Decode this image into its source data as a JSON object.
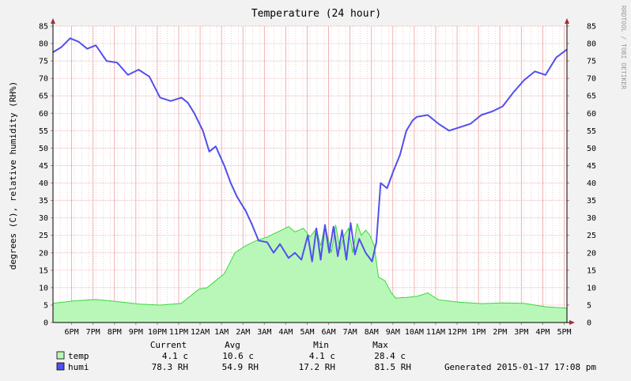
{
  "chart_data": {
    "type": "area+line",
    "title": "Temperature (24 hour)",
    "ylabel": "degrees (C), relative humidity (RH%)",
    "watermark": "RRDTOOL / TOBI OETIKER",
    "ylim": [
      0,
      85
    ],
    "y_ticks": [
      0,
      5,
      10,
      15,
      20,
      25,
      30,
      35,
      40,
      45,
      50,
      55,
      60,
      65,
      70,
      75,
      80,
      85
    ],
    "x_tick_labels": [
      "6PM",
      "7PM",
      "8PM",
      "9PM",
      "10PM",
      "11PM",
      "12AM",
      "1AM",
      "2AM",
      "3AM",
      "4AM",
      "5AM",
      "6AM",
      "7AM",
      "8AM",
      "9AM",
      "10AM",
      "11AM",
      "12PM",
      "1PM",
      "2PM",
      "3PM",
      "4PM",
      "5PM"
    ],
    "x_unit": "hours since 17:08 (left edge) to 17:08 (right edge)",
    "x_range": [
      0,
      24
    ],
    "grid": true,
    "colors": {
      "temp_fill": "#b9f7b9",
      "temp_line": "#39d839",
      "humi_line": "#5050ee",
      "grid": "#e8a0a0",
      "axis_arrow": "#a03030"
    },
    "series": [
      {
        "name": "temp",
        "style": "area",
        "x": [
          0,
          1,
          2,
          3,
          4,
          5,
          6,
          6.8,
          7.2,
          7.6,
          8,
          8.5,
          9,
          9.5,
          10,
          10.5,
          11,
          11.3,
          11.7,
          12,
          12.3,
          12.5,
          12.7,
          13,
          13.2,
          13.4,
          13.6,
          13.8,
          14,
          14.2,
          14.4,
          14.6,
          14.8,
          15.0,
          15.2,
          15.5,
          15.8,
          16,
          16.5,
          17,
          17.5,
          18,
          19,
          20,
          21,
          22,
          23,
          24
        ],
        "values": [
          5.5,
          6.2,
          6.6,
          6.0,
          5.3,
          5.0,
          5.5,
          9.5,
          10.0,
          12.0,
          14.0,
          20.0,
          22.0,
          23.5,
          24.5,
          26.0,
          27.5,
          26.0,
          27.0,
          24.5,
          27.0,
          22.0,
          28.0,
          20.0,
          28.0,
          21.0,
          25.0,
          27.0,
          20.0,
          28.4,
          25.0,
          26.5,
          25.0,
          22.0,
          13.0,
          12.0,
          8.5,
          7.0,
          7.2,
          7.5,
          8.5,
          6.5,
          5.8,
          5.4,
          5.6,
          5.5,
          4.5,
          4.1
        ]
      },
      {
        "name": "humi",
        "style": "line",
        "x": [
          0,
          0.4,
          0.8,
          1.2,
          1.6,
          2,
          2.5,
          3,
          3.5,
          4,
          4.5,
          5,
          5.5,
          6,
          6.3,
          6.6,
          7,
          7.3,
          7.6,
          8,
          8.3,
          8.6,
          9,
          9.3,
          9.6,
          10,
          10.3,
          10.6,
          11,
          11.3,
          11.6,
          11.9,
          12.1,
          12.3,
          12.5,
          12.7,
          12.9,
          13.1,
          13.3,
          13.5,
          13.7,
          13.9,
          14.1,
          14.3,
          14.6,
          14.9,
          15.1,
          15.3,
          15.6,
          15.9,
          16.2,
          16.5,
          16.8,
          17,
          17.5,
          18,
          18.5,
          19,
          19.5,
          20,
          20.5,
          21,
          21.5,
          22,
          22.5,
          23,
          23.5,
          24
        ],
        "values": [
          77.5,
          79.0,
          81.5,
          80.5,
          78.5,
          79.5,
          75.0,
          74.5,
          71.0,
          72.5,
          70.5,
          64.5,
          63.5,
          64.5,
          63.0,
          60.0,
          55.0,
          49.0,
          50.5,
          45.0,
          40.0,
          36.0,
          32.0,
          28.0,
          23.5,
          23.0,
          20.0,
          22.5,
          18.5,
          20.0,
          18.0,
          25.0,
          17.5,
          27.0,
          18.0,
          28.0,
          20.0,
          27.5,
          19.0,
          26.5,
          18.0,
          28.5,
          19.5,
          24.0,
          20.0,
          17.5,
          23.0,
          40.0,
          38.5,
          43.5,
          48.0,
          55.0,
          58.0,
          59.0,
          59.5,
          57.0,
          55.0,
          56.0,
          57.0,
          59.5,
          60.5,
          62.0,
          66.0,
          69.5,
          72.0,
          71.0,
          76.0,
          78.3
        ]
      }
    ]
  },
  "legend": {
    "headers": {
      "current": "Current",
      "avg": "Avg",
      "min": "Min",
      "max": "Max"
    },
    "rows": [
      {
        "name": "temp",
        "color": "#b9f7b9",
        "current": "4.1 c",
        "avg": "10.6 c",
        "min": "4.1 c",
        "max": "28.4 c"
      },
      {
        "name": "humi",
        "color": "#5050ee",
        "current": "78.3 RH",
        "avg": "54.9 RH",
        "min": "17.2 RH",
        "max": "81.5 RH"
      }
    ],
    "generated": "Generated 2015-01-17 17:08 pm"
  }
}
